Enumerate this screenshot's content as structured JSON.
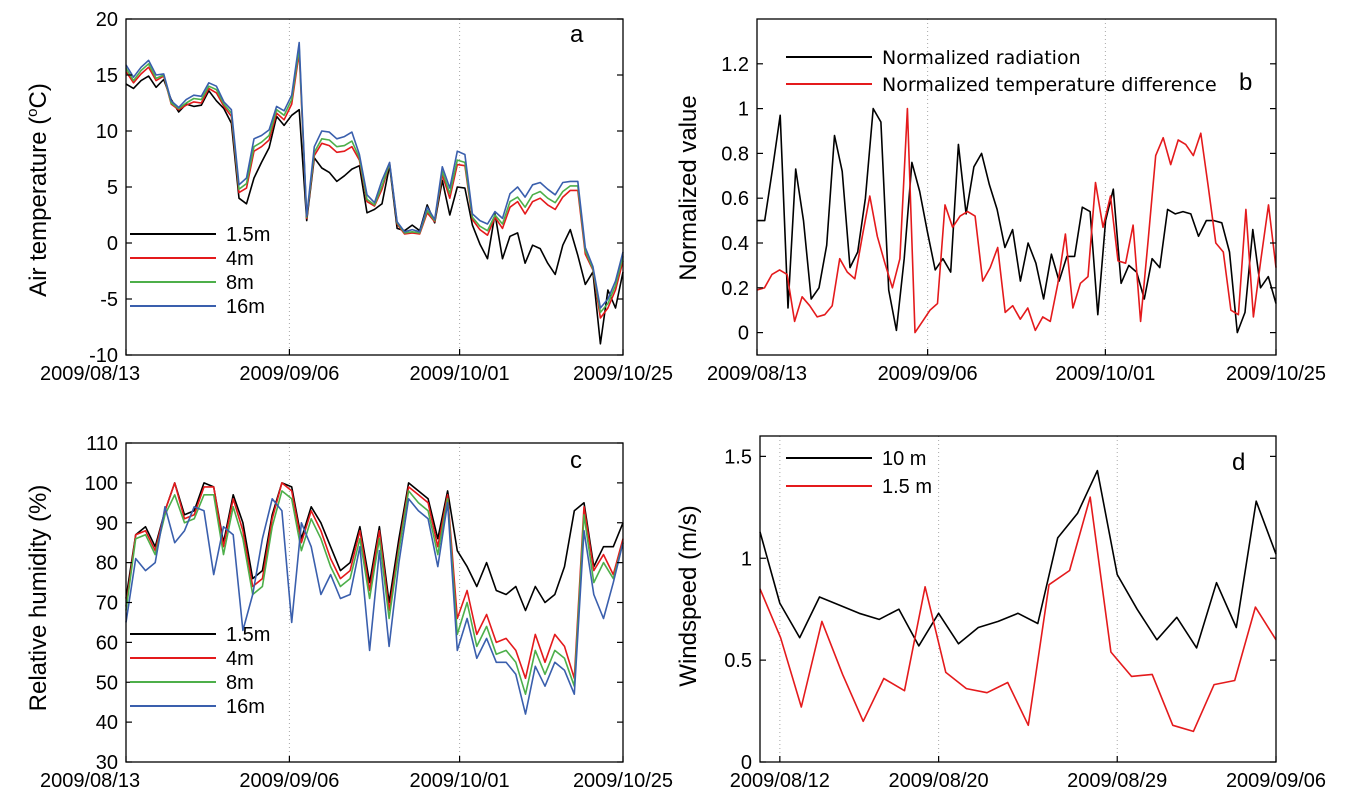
{
  "chart_data": [
    {
      "panel_label": "a",
      "type": "line",
      "ylabel": "Air temperature (",
      "ylabel_sup": "o",
      "ylabel_unit": "C)",
      "ylim": [
        -10,
        20
      ],
      "yticks": [
        -10,
        -5,
        0,
        5,
        10,
        15,
        20
      ],
      "xtick_labels": [
        "2009/08/13",
        "2009/09/06",
        "2009/10/01",
        "2009/10/25"
      ],
      "xlim": [
        "2009/08/13",
        "2009/10/25"
      ],
      "grid": "vertical dotted",
      "legend_position": "lower-left",
      "series": [
        {
          "name": "1.5m",
          "color": "#000000",
          "values": [
            14.2,
            13.8,
            14.5,
            14.9,
            13.9,
            14.6,
            12.8,
            11.7,
            12.4,
            12.2,
            12.3,
            13.6,
            12.7,
            12.0,
            10.7,
            4.0,
            3.5,
            5.8,
            7.2,
            8.5,
            11.3,
            10.5,
            11.4,
            11.9,
            2.0,
            7.6,
            6.7,
            6.3,
            5.5,
            6.0,
            6.6,
            6.9,
            2.7,
            3.0,
            3.5,
            6.9,
            1.3,
            1.1,
            1.6,
            1.1,
            3.4,
            1.8,
            5.6,
            2.5,
            5.0,
            4.9,
            1.6,
            -0.1,
            -1.4,
            2.6,
            -1.4,
            0.6,
            0.9,
            -1.8,
            -0.2,
            -0.5,
            -1.8,
            -2.8,
            -0.2,
            1.2,
            -1.1,
            -3.7,
            -2.6,
            -9.0,
            -4.2,
            -5.8,
            -2.6
          ]
        },
        {
          "name": "4m",
          "color": "#e41a1c",
          "values": [
            15.3,
            14.3,
            15.1,
            15.7,
            14.5,
            14.9,
            12.4,
            11.9,
            12.3,
            12.6,
            12.5,
            13.8,
            13.4,
            12.2,
            11.3,
            4.5,
            4.9,
            8.2,
            8.6,
            9.2,
            11.6,
            11.0,
            12.4,
            17.0,
            2.2,
            7.8,
            8.9,
            8.7,
            8.1,
            8.2,
            8.6,
            7.4,
            3.7,
            3.3,
            4.8,
            7.1,
            1.7,
            0.8,
            0.9,
            0.8,
            2.7,
            1.9,
            6.1,
            4.0,
            7.0,
            6.9,
            2.1,
            1.2,
            0.7,
            2.3,
            1.3,
            3.2,
            3.7,
            2.6,
            3.7,
            4.0,
            3.4,
            3.0,
            4.1,
            4.7,
            4.7,
            -1.0,
            -2.4,
            -6.7,
            -5.8,
            -4.2,
            -1.6
          ]
        },
        {
          "name": "8m",
          "color": "#4daf4a",
          "values": [
            15.6,
            14.5,
            15.4,
            16.0,
            14.7,
            15.0,
            12.5,
            12.0,
            12.5,
            12.9,
            12.8,
            14.0,
            13.7,
            12.4,
            11.6,
            4.8,
            5.3,
            8.6,
            9.0,
            9.6,
            11.9,
            11.4,
            12.8,
            17.4,
            2.3,
            8.1,
            9.3,
            9.2,
            8.6,
            8.7,
            9.1,
            7.6,
            3.9,
            3.4,
            5.1,
            7.1,
            1.8,
            0.9,
            1.0,
            0.9,
            2.9,
            2.0,
            6.4,
            4.4,
            7.4,
            7.2,
            2.3,
            1.5,
            1.1,
            2.5,
            1.7,
            3.7,
            4.1,
            3.2,
            4.3,
            4.6,
            4.0,
            3.6,
            4.6,
            5.1,
            5.1,
            -0.7,
            -2.3,
            -6.2,
            -5.4,
            -3.8,
            -1.2
          ]
        },
        {
          "name": "16m",
          "color": "#3a5fad",
          "values": [
            15.9,
            14.8,
            15.7,
            16.3,
            15.0,
            15.1,
            12.7,
            12.1,
            12.8,
            13.2,
            13.1,
            14.3,
            14.0,
            12.6,
            11.9,
            5.2,
            5.8,
            9.3,
            9.6,
            10.1,
            12.2,
            11.8,
            13.2,
            17.9,
            2.4,
            8.6,
            10.0,
            9.9,
            9.3,
            9.5,
            9.9,
            7.9,
            4.3,
            3.6,
            5.6,
            7.2,
            1.9,
            1.0,
            1.2,
            1.0,
            3.2,
            2.1,
            6.8,
            4.9,
            8.2,
            7.9,
            2.6,
            2.0,
            1.7,
            2.8,
            2.2,
            4.4,
            5.0,
            4.1,
            5.2,
            5.4,
            4.8,
            4.3,
            5.4,
            5.5,
            5.5,
            -0.4,
            -2.1,
            -5.8,
            -5.0,
            -3.4,
            -0.8
          ]
        }
      ]
    },
    {
      "panel_label": "b",
      "type": "line",
      "ylabel": "Normalized value",
      "ylim": [
        -0.1,
        1.4
      ],
      "yticks": [
        0,
        0.2,
        0.4,
        0.6,
        0.8,
        1,
        1.2
      ],
      "ytick_labels": [
        "0",
        "0.2",
        "0.4",
        "0.6",
        "0.8",
        "1",
        "1.2"
      ],
      "xtick_labels": [
        "2009/08/13",
        "2009/09/06",
        "2009/10/01",
        "2009/10/25"
      ],
      "xlim": [
        "2009/08/13",
        "2009/10/25"
      ],
      "grid": "vertical dotted",
      "legend_position": "top-left",
      "series": [
        {
          "name": "Normalized radiation",
          "color": "#000000",
          "values": [
            0.5,
            0.5,
            0.73,
            0.97,
            0.11,
            0.73,
            0.5,
            0.15,
            0.2,
            0.39,
            0.88,
            0.72,
            0.29,
            0.36,
            0.6,
            1.0,
            0.94,
            0.19,
            0.01,
            0.33,
            0.76,
            0.63,
            0.45,
            0.28,
            0.33,
            0.27,
            0.84,
            0.53,
            0.74,
            0.8,
            0.66,
            0.55,
            0.38,
            0.46,
            0.23,
            0.4,
            0.31,
            0.15,
            0.35,
            0.23,
            0.34,
            0.34,
            0.56,
            0.54,
            0.08,
            0.5,
            0.64,
            0.22,
            0.3,
            0.27,
            0.15,
            0.33,
            0.29,
            0.55,
            0.53,
            0.54,
            0.53,
            0.43,
            0.5,
            0.5,
            0.49,
            0.36,
            0.0,
            0.09,
            0.46,
            0.2,
            0.25,
            0.13
          ]
        },
        {
          "name": "Normalized temperature difference",
          "color": "#e41a1c",
          "values": [
            0.19,
            0.2,
            0.26,
            0.28,
            0.26,
            0.05,
            0.16,
            0.12,
            0.07,
            0.08,
            0.12,
            0.33,
            0.27,
            0.24,
            0.43,
            0.61,
            0.43,
            0.31,
            0.2,
            0.33,
            1.0,
            0.0,
            0.05,
            0.1,
            0.13,
            0.57,
            0.47,
            0.52,
            0.54,
            0.52,
            0.23,
            0.29,
            0.38,
            0.09,
            0.12,
            0.06,
            0.11,
            0.01,
            0.07,
            0.05,
            0.22,
            0.44,
            0.11,
            0.22,
            0.25,
            0.67,
            0.47,
            0.61,
            0.32,
            0.31,
            0.48,
            0.05,
            0.41,
            0.79,
            0.87,
            0.75,
            0.86,
            0.84,
            0.79,
            0.89,
            0.65,
            0.4,
            0.36,
            0.1,
            0.08,
            0.55,
            0.07,
            0.33,
            0.57,
            0.29
          ]
        }
      ]
    },
    {
      "panel_label": "c",
      "type": "line",
      "ylabel": "Relative humidity (%)",
      "ylim": [
        30,
        110
      ],
      "yticks": [
        30,
        40,
        50,
        60,
        70,
        80,
        90,
        100,
        110
      ],
      "xtick_labels": [
        "2009/08/13",
        "2009/09/06",
        "2009/10/01",
        "2009/10/25"
      ],
      "xlim": [
        "2009/08/13",
        "2009/10/25"
      ],
      "grid": "vertical dotted",
      "legend_position": "lower-left",
      "series": [
        {
          "name": "1.5m",
          "color": "#000000",
          "values": [
            71,
            87,
            89,
            84,
            93,
            100,
            92,
            93,
            100,
            99,
            85,
            97,
            90,
            76,
            78,
            92,
            100,
            99,
            86,
            94,
            90,
            84,
            78,
            80,
            89,
            75,
            89,
            70,
            86,
            100,
            98,
            96,
            86,
            98,
            83,
            79,
            74,
            80,
            73,
            72,
            74,
            68,
            74,
            70,
            72,
            79,
            93,
            95,
            79,
            84,
            84,
            90
          ]
        },
        {
          "name": "4m",
          "color": "#e41a1c",
          "values": [
            69,
            87,
            88,
            83,
            93,
            100,
            91,
            92,
            99,
            99,
            84,
            96,
            88,
            74,
            76,
            91,
            100,
            98,
            85,
            93,
            88,
            81,
            76,
            78,
            88,
            73,
            88,
            68,
            84,
            99,
            97,
            95,
            84,
            97,
            66,
            73,
            62,
            67,
            60,
            61,
            58,
            51,
            62,
            55,
            62,
            59,
            51,
            94,
            78,
            82,
            77,
            86
          ]
        },
        {
          "name": "8m",
          "color": "#4daf4a",
          "values": [
            68,
            86,
            87,
            82,
            92,
            97,
            90,
            91,
            97,
            97,
            82,
            94,
            86,
            72,
            74,
            89,
            98,
            96,
            83,
            91,
            86,
            79,
            74,
            76,
            86,
            71,
            86,
            66,
            83,
            98,
            95,
            93,
            82,
            96,
            62,
            70,
            59,
            64,
            57,
            58,
            55,
            47,
            58,
            52,
            58,
            56,
            49,
            92,
            75,
            80,
            76,
            85
          ]
        },
        {
          "name": "16m",
          "color": "#3a5fad",
          "values": [
            65,
            81,
            78,
            80,
            94,
            85,
            88,
            94,
            93,
            77,
            89,
            87,
            63,
            72,
            86,
            96,
            93,
            65,
            90,
            84,
            72,
            77,
            71,
            72,
            84,
            58,
            83,
            59,
            80,
            96,
            93,
            91,
            79,
            95,
            58,
            66,
            56,
            61,
            55,
            55,
            52,
            42,
            54,
            49,
            55,
            53,
            47,
            88,
            72,
            66,
            75,
            85
          ]
        }
      ]
    },
    {
      "panel_label": "d",
      "type": "line",
      "ylabel": "Windspeed (m/s)",
      "ylim": [
        0,
        1.6
      ],
      "yticks": [
        0,
        0.5,
        1,
        1.5
      ],
      "ytick_labels": [
        "0",
        "0.5",
        "1",
        "1.5"
      ],
      "xtick_labels": [
        "2009/08/12",
        "2009/08/20",
        "2009/08/29",
        "2009/09/06"
      ],
      "xlim": [
        "2009/08/11",
        "2009/09/06"
      ],
      "grid": "vertical dotted",
      "legend_position": "top-left",
      "series": [
        {
          "name": "10 m",
          "color": "#000000",
          "values": [
            1.13,
            0.78,
            0.61,
            0.81,
            0.77,
            0.73,
            0.7,
            0.75,
            0.57,
            0.73,
            0.58,
            0.66,
            0.69,
            0.73,
            0.68,
            1.1,
            1.22,
            1.43,
            0.92,
            0.75,
            0.6,
            0.71,
            0.56,
            0.88,
            0.66,
            1.28,
            1.02
          ]
        },
        {
          "name": "1.5 m",
          "color": "#e41a1c",
          "values": [
            0.85,
            0.61,
            0.27,
            0.69,
            0.43,
            0.2,
            0.41,
            0.35,
            0.86,
            0.44,
            0.36,
            0.34,
            0.39,
            0.18,
            0.87,
            0.94,
            1.3,
            0.54,
            0.42,
            0.43,
            0.18,
            0.15,
            0.38,
            0.4,
            0.76,
            0.6
          ]
        }
      ]
    }
  ]
}
